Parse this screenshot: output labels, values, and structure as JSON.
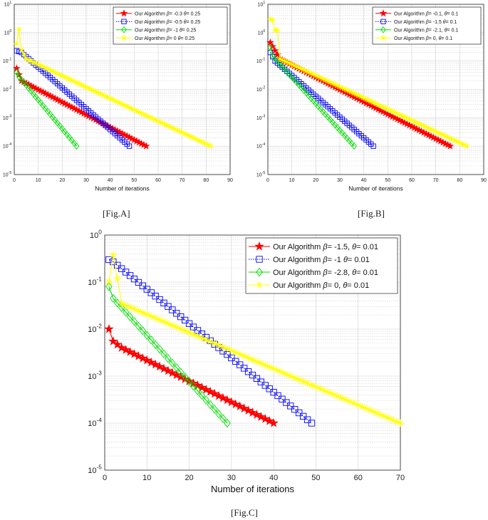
{
  "figure": {
    "captions": [
      "[Fig.A]",
      "[Fig.B]",
      "[Fig.C]"
    ]
  },
  "chart_data": [
    {
      "id": "A",
      "type": "line",
      "yscale": "log",
      "title": "",
      "xlabel": "Number of iterations",
      "ylabel": "",
      "xlim": [
        0,
        90
      ],
      "ylim": [
        1e-05,
        10
      ],
      "xticks": [
        0,
        10,
        20,
        30,
        40,
        50,
        60,
        70,
        80,
        90
      ],
      "yticks": [
        {
          "exp": "-5",
          "value": 1e-05
        },
        {
          "exp": "-4",
          "value": 0.0001
        },
        {
          "exp": "-3",
          "value": 0.001
        },
        {
          "exp": "-2",
          "value": 0.01
        },
        {
          "exp": "-1",
          "value": 0.1
        },
        {
          "exp": "0",
          "value": 1
        },
        {
          "exp": "1",
          "value": 10
        }
      ],
      "grid": true,
      "legend_position": "top-right",
      "series": [
        {
          "name": "Our Algorithm β= -0.3, θ= 0.25",
          "legend_prefix": "Our Algorithm ",
          "beta": "-0.3",
          "theta": "0.25",
          "color": "#ff0000",
          "marker": "star",
          "linestyle": "solid",
          "knots": [
            [
              1,
              0.055
            ],
            [
              3,
              0.02
            ],
            [
              55,
              0.0001
            ]
          ]
        },
        {
          "name": "Our Algorithm β= -0.5 θ= 0.25",
          "legend_prefix": "Our Algorithm ",
          "beta": "-0.5",
          "theta": "0.25",
          "color": "#0000ff",
          "marker": "square",
          "linestyle": "dotted",
          "knots": [
            [
              1,
              0.23
            ],
            [
              3,
              0.2
            ],
            [
              48,
              0.0001
            ]
          ]
        },
        {
          "name": "Our Algorithm β=-1, θ= 0.25",
          "legend_prefix": "Our Algorithm ",
          "beta": "-1",
          "theta": "0.25",
          "color": "#00dd00",
          "marker": "diamond",
          "linestyle": "solid",
          "knots": [
            [
              1,
              0.04
            ],
            [
              2,
              0.028
            ],
            [
              26,
              0.0001
            ]
          ]
        },
        {
          "name": "Our Algorithm β=0, θ= 0.25",
          "legend_prefix": "Our Algorithm ",
          "beta": "0",
          "theta": "0.25",
          "color": "#ffff00",
          "marker": "asterisk",
          "linestyle": "solid",
          "knots": [
            [
              1,
              0.4
            ],
            [
              2,
              1.3
            ],
            [
              3,
              0.25
            ],
            [
              5,
              0.12
            ],
            [
              82,
              0.0001
            ]
          ]
        }
      ]
    },
    {
      "id": "B",
      "type": "line",
      "yscale": "log",
      "title": "",
      "xlabel": "Number of iterations",
      "ylabel": "",
      "xlim": [
        0,
        90
      ],
      "ylim": [
        1e-05,
        10
      ],
      "xticks": [
        0,
        10,
        20,
        30,
        40,
        50,
        60,
        70,
        80,
        90
      ],
      "yticks": [
        {
          "exp": "-5",
          "value": 1e-05
        },
        {
          "exp": "-4",
          "value": 0.0001
        },
        {
          "exp": "-3",
          "value": 0.001
        },
        {
          "exp": "-2",
          "value": 0.01
        },
        {
          "exp": "-1",
          "value": 0.1
        },
        {
          "exp": "0",
          "value": 1
        },
        {
          "exp": "1",
          "value": 10
        }
      ],
      "grid": true,
      "legend_position": "top-right",
      "series": [
        {
          "name": "Our Algorithm β= -0.1, θ= 0.1",
          "legend_prefix": "Our Algorithm ",
          "beta": "-0.1,",
          "theta": "0.1",
          "color": "#ff0000",
          "marker": "star",
          "linestyle": "solid",
          "knots": [
            [
              1,
              0.45
            ],
            [
              5,
              0.12
            ],
            [
              76,
              0.0001
            ]
          ]
        },
        {
          "name": "Our Algorithm β= -1.5 θ= 0.1",
          "legend_prefix": "Our Algorithm ",
          "beta": "-1.5",
          "theta": "0.1",
          "color": "#0000ff",
          "marker": "square",
          "linestyle": "dotted",
          "knots": [
            [
              1,
              0.2
            ],
            [
              3,
              0.1
            ],
            [
              44,
              0.0001
            ]
          ]
        },
        {
          "name": "Our Algorithm β=-2.1, θ= 0.1",
          "legend_prefix": "Our Algorithm ",
          "beta": "-2.1,",
          "theta": "0.1",
          "color": "#00dd00",
          "marker": "diamond",
          "linestyle": "solid",
          "knots": [
            [
              1,
              0.3
            ],
            [
              2,
              0.15
            ],
            [
              36,
              0.0001
            ]
          ]
        },
        {
          "name": "Our Algorithm β=0, θ= 0.1",
          "legend_prefix": "Our Algorithm ",
          "beta": "0,",
          "theta": "0.1",
          "color": "#ffff00",
          "marker": "asterisk",
          "linestyle": "solid",
          "knots": [
            [
              1,
              3.0
            ],
            [
              2,
              2.8
            ],
            [
              3,
              1.2
            ],
            [
              4,
              1.2
            ],
            [
              5,
              0.12
            ],
            [
              83,
              0.0001
            ]
          ]
        }
      ]
    },
    {
      "id": "C",
      "type": "line",
      "yscale": "log",
      "title": "",
      "xlabel": "Number of iterations",
      "ylabel": "",
      "xlim": [
        0,
        70
      ],
      "ylim": [
        1e-05,
        1
      ],
      "xticks": [
        0,
        10,
        20,
        30,
        40,
        50,
        60,
        70
      ],
      "yticks": [
        {
          "exp": "-5",
          "value": 1e-05
        },
        {
          "exp": "-4",
          "value": 0.0001
        },
        {
          "exp": "-3",
          "value": 0.001
        },
        {
          "exp": "-2",
          "value": 0.01
        },
        {
          "exp": "-1",
          "value": 0.1
        },
        {
          "exp": "0",
          "value": 1
        }
      ],
      "grid": true,
      "legend_position": "top-right",
      "series": [
        {
          "name": "Our Algorithm β= -1.5, θ= 0.01",
          "legend_prefix": "Our Algorithm ",
          "beta": "-1.5,",
          "theta": "0.01",
          "color": "#ff0000",
          "marker": "star",
          "linestyle": "solid",
          "knots": [
            [
              1,
              0.01
            ],
            [
              2,
              0.0055
            ],
            [
              4,
              0.004
            ],
            [
              40,
              0.0001
            ]
          ]
        },
        {
          "name": "Our Algorithm β= -1 θ= 0.01",
          "legend_prefix": "Our Algorithm ",
          "beta": "-1",
          "theta": "0.01",
          "color": "#0000ff",
          "marker": "square",
          "linestyle": "dotted",
          "knots": [
            [
              1,
              0.3
            ],
            [
              2,
              0.27
            ],
            [
              49,
              0.0001
            ]
          ]
        },
        {
          "name": "Our Algorithm β=-2.8, θ= 0.01",
          "legend_prefix": "Our Algorithm ",
          "beta": "-2.8,",
          "theta": "0.01",
          "color": "#00dd00",
          "marker": "diamond",
          "linestyle": "solid",
          "knots": [
            [
              1,
              0.08
            ],
            [
              2,
              0.045
            ],
            [
              29,
              0.0001
            ]
          ]
        },
        {
          "name": "Our Algorithm β=0, θ= 0.01",
          "legend_prefix": "Our Algorithm ",
          "beta": "0,",
          "theta": "0.01",
          "color": "#ffff00",
          "marker": "asterisk",
          "linestyle": "solid",
          "knots": [
            [
              1,
              0.1
            ],
            [
              2,
              0.38
            ],
            [
              3,
              0.12
            ],
            [
              4,
              0.035
            ],
            [
              70,
              0.0001
            ]
          ]
        }
      ]
    }
  ]
}
